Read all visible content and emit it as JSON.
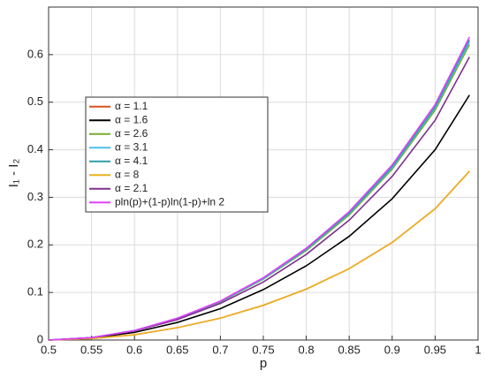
{
  "chart_data": {
    "type": "line",
    "xlabel": "p",
    "ylabel": "I₁ - I₂",
    "x": [
      0.5,
      0.55,
      0.6,
      0.65,
      0.7,
      0.75,
      0.8,
      0.85,
      0.9,
      0.95,
      0.99
    ],
    "series": [
      {
        "name": "α = 1.1",
        "color": "#d95319",
        "values": [
          0,
          0.003,
          0.011,
          0.026,
          0.046,
          0.073,
          0.107,
          0.15,
          0.205,
          0.276,
          0.355
        ]
      },
      {
        "name": "α = 1.6",
        "color": "#000000",
        "values": [
          0,
          0.004,
          0.016,
          0.037,
          0.066,
          0.106,
          0.156,
          0.218,
          0.297,
          0.4,
          0.515
        ]
      },
      {
        "name": "α = 2.6",
        "color": "#77ac30",
        "values": [
          0,
          0.005,
          0.02,
          0.045,
          0.08,
          0.128,
          0.188,
          0.263,
          0.359,
          0.483,
          0.621
        ]
      },
      {
        "name": "α = 3.1",
        "color": "#4dbeee",
        "values": [
          0,
          0.005,
          0.02,
          0.045,
          0.081,
          0.129,
          0.19,
          0.266,
          0.362,
          0.488,
          0.627
        ]
      },
      {
        "name": "α = 4.1",
        "color": "#2e9fa8",
        "values": [
          0,
          0.005,
          0.02,
          0.046,
          0.081,
          0.13,
          0.191,
          0.267,
          0.364,
          0.49,
          0.631
        ]
      },
      {
        "name": "α = 8",
        "color": "#edb120",
        "values": [
          0,
          0.003,
          0.011,
          0.026,
          0.046,
          0.073,
          0.107,
          0.15,
          0.205,
          0.276,
          0.355
        ]
      },
      {
        "name": "α = 2.1",
        "color": "#7e2f8e",
        "values": [
          0,
          0.005,
          0.019,
          0.043,
          0.077,
          0.122,
          0.18,
          0.252,
          0.344,
          0.462,
          0.595
        ]
      },
      {
        "name": "pln(p)+(1-p)ln(1-p)+ln 2",
        "color": "#e040fb",
        "values": [
          0,
          0.005,
          0.02,
          0.046,
          0.082,
          0.131,
          0.193,
          0.27,
          0.368,
          0.495,
          0.637
        ]
      }
    ],
    "xlim": [
      0.5,
      1
    ],
    "xticks": [
      0.5,
      0.55,
      0.6,
      0.65,
      0.7,
      0.75,
      0.8,
      0.85,
      0.9,
      0.95,
      1
    ],
    "ylim": [
      0,
      0.7
    ],
    "yticks": [
      0,
      0.1,
      0.2,
      0.3,
      0.4,
      0.5,
      0.6
    ],
    "grid": true,
    "legend": "upper left"
  }
}
